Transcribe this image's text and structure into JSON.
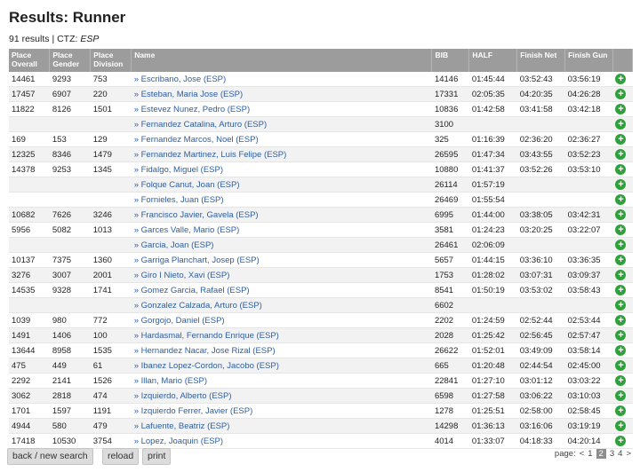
{
  "page": {
    "title": "Results: Runner",
    "count_text": "91 results | CTZ:",
    "count_filter": "ESP"
  },
  "headers": [
    "Place Overall",
    "Place Gender",
    "Place Division",
    "Name",
    "BIB",
    "HALF",
    "Finish Net",
    "Finish Gun",
    ""
  ],
  "rows": [
    [
      "14461",
      "9293",
      "753",
      "» Escribano, Jose (ESP)",
      "14146",
      "01:45:44",
      "03:52:43",
      "03:56:19"
    ],
    [
      "17457",
      "6907",
      "220",
      "» Esteban, Maria Jose (ESP)",
      "17331",
      "02:05:35",
      "04:20:35",
      "04:26:28"
    ],
    [
      "11822",
      "8126",
      "1501",
      "» Estevez Nunez, Pedro (ESP)",
      "10836",
      "01:42:58",
      "03:41:58",
      "03:42:18"
    ],
    [
      "",
      "",
      "",
      "» Fernandez Catalina, Arturo (ESP)",
      "3100",
      "",
      "",
      ""
    ],
    [
      "169",
      "153",
      "129",
      "» Fernandez Marcos, Noel (ESP)",
      "325",
      "01:16:39",
      "02:36:20",
      "02:36:27"
    ],
    [
      "12325",
      "8346",
      "1479",
      "» Fernandez Martinez, Luis Felipe (ESP)",
      "26595",
      "01:47:34",
      "03:43:55",
      "03:52:23"
    ],
    [
      "14378",
      "9253",
      "1345",
      "» Fidalgo, Miguel (ESP)",
      "10880",
      "01:41:37",
      "03:52:26",
      "03:53:10"
    ],
    [
      "",
      "",
      "",
      "» Folque Canut, Joan (ESP)",
      "26114",
      "01:57:19",
      "",
      ""
    ],
    [
      "",
      "",
      "",
      "» Fornieles, Juan (ESP)",
      "26469",
      "01:55:54",
      "",
      ""
    ],
    [
      "10682",
      "7626",
      "3246",
      "» Francisco Javier, Gavela (ESP)",
      "6995",
      "01:44:00",
      "03:38:05",
      "03:42:31"
    ],
    [
      "5956",
      "5082",
      "1013",
      "» Garces Valle, Mario (ESP)",
      "3581",
      "01:24:23",
      "03:20:25",
      "03:22:07"
    ],
    [
      "",
      "",
      "",
      "» Garcia, Joan (ESP)",
      "26461",
      "02:06:09",
      "",
      ""
    ],
    [
      "10137",
      "7375",
      "1360",
      "» Garriga Planchart, Josep (ESP)",
      "5657",
      "01:44:15",
      "03:36:10",
      "03:36:35"
    ],
    [
      "3276",
      "3007",
      "2001",
      "» Giro I Nieto, Xavi (ESP)",
      "1753",
      "01:28:02",
      "03:07:31",
      "03:09:37"
    ],
    [
      "14535",
      "9328",
      "1741",
      "» Gomez Garcia, Rafael (ESP)",
      "8541",
      "01:50:19",
      "03:53:02",
      "03:58:43"
    ],
    [
      "",
      "",
      "",
      "» Gonzalez Calzada, Arturo (ESP)",
      "6602",
      "",
      "",
      ""
    ],
    [
      "1039",
      "980",
      "772",
      "» Gorgojo, Daniel (ESP)",
      "2202",
      "01:24:59",
      "02:52:44",
      "02:53:44"
    ],
    [
      "1491",
      "1406",
      "100",
      "» Hardasmal, Fernando Enrique (ESP)",
      "2028",
      "01:25:42",
      "02:56:45",
      "02:57:47"
    ],
    [
      "13644",
      "8958",
      "1535",
      "» Hernandez Nacar, Jose Rizal (ESP)",
      "26622",
      "01:52:01",
      "03:49:09",
      "03:58:14"
    ],
    [
      "475",
      "449",
      "61",
      "» Ibanez Lopez-Cordon, Jacobo (ESP)",
      "665",
      "01:20:48",
      "02:44:54",
      "02:45:00"
    ],
    [
      "2292",
      "2141",
      "1526",
      "» Illan, Mario (ESP)",
      "22841",
      "01:27:10",
      "03:01:12",
      "03:03:22"
    ],
    [
      "3062",
      "2818",
      "474",
      "» Izquierdo, Alberto (ESP)",
      "6598",
      "01:27:58",
      "03:06:22",
      "03:10:03"
    ],
    [
      "1701",
      "1597",
      "1191",
      "» Izquierdo Ferrer, Javier (ESP)",
      "1278",
      "01:25:51",
      "02:58:00",
      "02:58:45"
    ],
    [
      "4944",
      "580",
      "479",
      "» Lafuente, Beatriz (ESP)",
      "14298",
      "01:36:13",
      "03:16:06",
      "03:19:19"
    ],
    [
      "17418",
      "10530",
      "3754",
      "» Lopez, Joaquin (ESP)",
      "4014",
      "01:33:07",
      "04:18:33",
      "04:20:14"
    ]
  ],
  "buttons": {
    "back": "back / new search",
    "reload": "reload",
    "print": "print"
  },
  "pager": {
    "label": "page:",
    "prev": "<",
    "pages": [
      "1",
      "2",
      "3",
      "4"
    ],
    "current": "2",
    "next": ">"
  },
  "icons": {
    "add": "plus-icon",
    "add_color": "#2fa13a"
  }
}
